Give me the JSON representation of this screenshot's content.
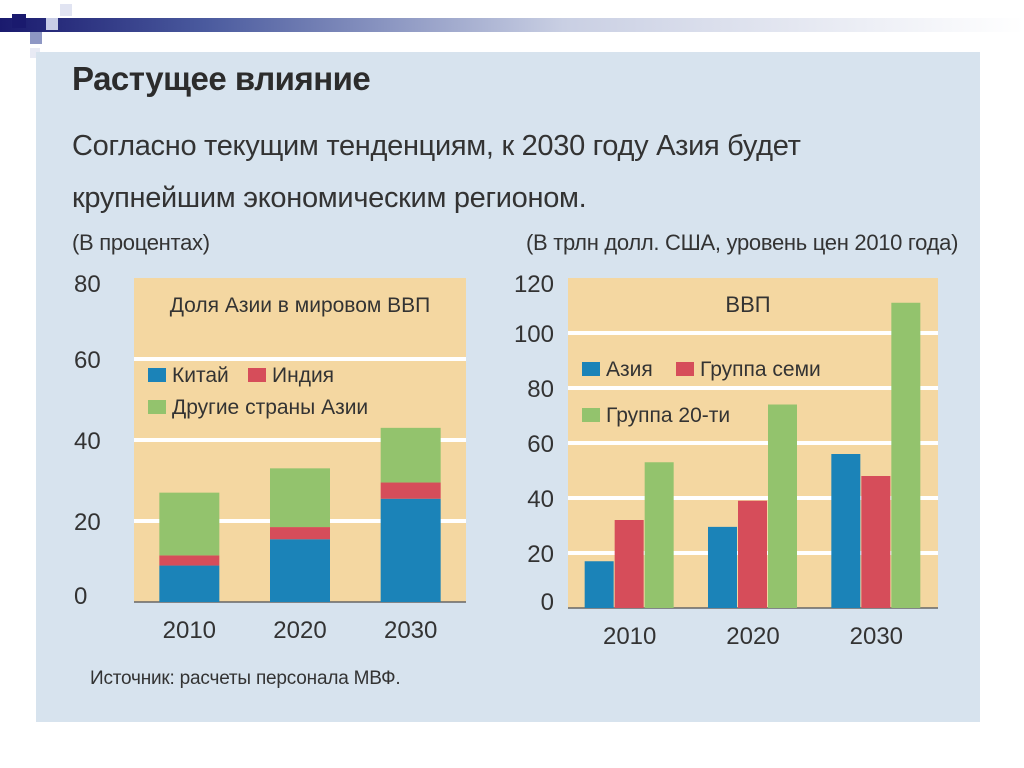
{
  "title": "Растущее влияние",
  "subtitle": "Согласно текущим тенденциям, к 2030 году Азия будет крупнейшим экономическим регионом.",
  "unit_left": "(В процентах)",
  "unit_right": "(В трлн долл. США, уровень цен 2010 года)",
  "source": "Источник: расчеты персонала МВФ.",
  "colors": {
    "panel": "#d7e3ee",
    "plot": "#f4d7a1",
    "china": "#1b83b8",
    "india": "#d64d5a",
    "other_asia": "#93c36d",
    "asia": "#1b83b8",
    "g7": "#d64d5a",
    "g20": "#93c36d"
  },
  "chart_data": [
    {
      "type": "bar",
      "stacked": true,
      "title": "Доля Азии в мировом ВВП",
      "categories": [
        "2010",
        "2020",
        "2030"
      ],
      "ylim": [
        0,
        80
      ],
      "yticks": [
        "0",
        "20",
        "40",
        "60",
        "80"
      ],
      "grid": true,
      "legend_position": "top-left",
      "series": [
        {
          "name": "Китай",
          "values": [
            9,
            15.5,
            25.5
          ]
        },
        {
          "name": "Индия",
          "values": [
            2.5,
            3,
            4
          ]
        },
        {
          "name": "Другие страны Азии",
          "values": [
            15.5,
            14.5,
            13.5
          ]
        }
      ]
    },
    {
      "type": "bar",
      "stacked": false,
      "title": "ВВП",
      "categories": [
        "2010",
        "2020",
        "2030"
      ],
      "ylim": [
        0,
        120
      ],
      "yticks": [
        "0",
        "20",
        "40",
        "60",
        "80",
        "100",
        "120"
      ],
      "grid": true,
      "legend_position": "top-left",
      "series": [
        {
          "name": "Азия",
          "values": [
            17,
            29.5,
            56
          ]
        },
        {
          "name": "Группа семи",
          "values": [
            32,
            39,
            48
          ]
        },
        {
          "name": "Группа 20-ти",
          "values": [
            53,
            74,
            111
          ]
        }
      ]
    }
  ]
}
